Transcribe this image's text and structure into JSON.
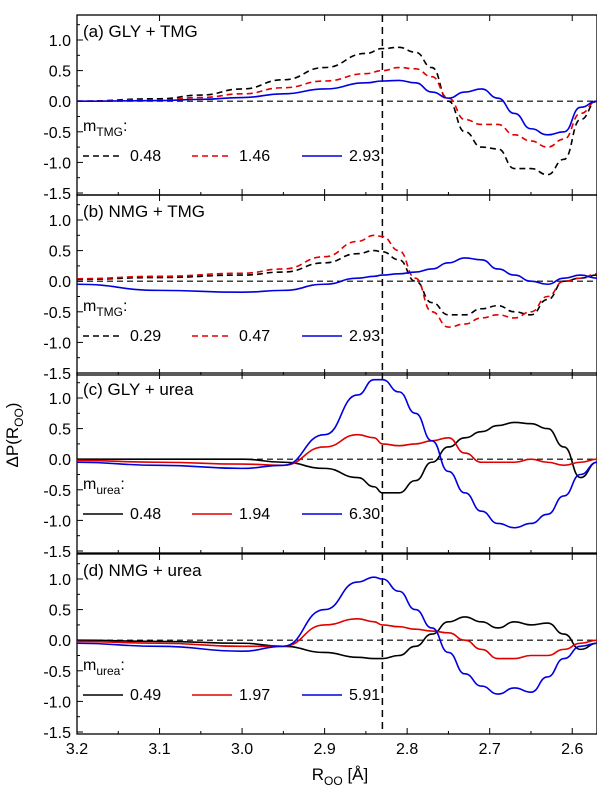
{
  "figure": {
    "ylabel_main": "ΔP(R",
    "ylabel_sub": "OO",
    "ylabel_end": ")",
    "xlabel_main": "R",
    "xlabel_sub": "OO",
    "xlabel_end": " [Å]",
    "xticks": [
      "3.2",
      "3.1",
      "3.0",
      "2.9",
      "2.8",
      "2.7",
      "2.6"
    ],
    "yticks": [
      "-1.5",
      "-1.0",
      "-0.5",
      "0.0",
      "0.5",
      "1.0"
    ]
  },
  "chart_data": [
    {
      "type": "line",
      "title": "(a) GLY + TMG",
      "xlim": [
        3.2,
        2.57
      ],
      "ylim": [
        -1.5,
        1.5
      ],
      "xlabel": "R_OO [Å]",
      "ylabel": "ΔP(R_OO)",
      "vline": 2.83,
      "hline": 0.0,
      "legend_label_main": "m",
      "legend_label_sub": "TMG",
      "legend_label_end": ":",
      "series": [
        {
          "name": "0.48",
          "color": "#000000",
          "dash": "dashed",
          "x": [
            3.2,
            3.1,
            3.05,
            3.0,
            2.95,
            2.9,
            2.85,
            2.83,
            2.81,
            2.79,
            2.77,
            2.75,
            2.73,
            2.71,
            2.69,
            2.67,
            2.65,
            2.63,
            2.61,
            2.59,
            2.57
          ],
          "y": [
            0.0,
            0.04,
            0.1,
            0.2,
            0.35,
            0.55,
            0.78,
            0.86,
            0.88,
            0.8,
            0.55,
            0.0,
            -0.5,
            -0.75,
            -0.78,
            -1.1,
            -1.1,
            -1.2,
            -0.95,
            -0.3,
            0.0
          ]
        },
        {
          "name": "1.46",
          "color": "#e00000",
          "dash": "dashed",
          "x": [
            3.2,
            3.1,
            3.05,
            3.0,
            2.95,
            2.9,
            2.85,
            2.83,
            2.81,
            2.79,
            2.77,
            2.75,
            2.73,
            2.71,
            2.69,
            2.67,
            2.65,
            2.63,
            2.61,
            2.59,
            2.57
          ],
          "y": [
            0.0,
            0.02,
            0.06,
            0.12,
            0.22,
            0.33,
            0.45,
            0.5,
            0.55,
            0.53,
            0.4,
            0.05,
            -0.3,
            -0.38,
            -0.38,
            -0.55,
            -0.65,
            -0.75,
            -0.62,
            -0.2,
            0.0
          ]
        },
        {
          "name": "2.93",
          "color": "#0000e0",
          "dash": "solid",
          "x": [
            3.2,
            3.1,
            3.05,
            3.0,
            2.95,
            2.9,
            2.85,
            2.83,
            2.81,
            2.79,
            2.77,
            2.75,
            2.73,
            2.71,
            2.69,
            2.67,
            2.65,
            2.63,
            2.61,
            2.59,
            2.57
          ],
          "y": [
            0.0,
            0.01,
            0.03,
            0.06,
            0.12,
            0.2,
            0.3,
            0.33,
            0.34,
            0.3,
            0.15,
            0.05,
            0.15,
            0.2,
            0.05,
            -0.2,
            -0.45,
            -0.55,
            -0.5,
            -0.1,
            0.0
          ]
        }
      ]
    },
    {
      "type": "line",
      "title": "(b) NMG + TMG",
      "xlim": [
        3.2,
        2.57
      ],
      "ylim": [
        -1.5,
        1.5
      ],
      "xlabel": "R_OO [Å]",
      "ylabel": "ΔP(R_OO)",
      "vline": 2.83,
      "hline": 0.0,
      "legend_label_main": "m",
      "legend_label_sub": "TMG",
      "legend_label_end": ":",
      "series": [
        {
          "name": "0.29",
          "color": "#000000",
          "dash": "dashed",
          "x": [
            3.2,
            3.1,
            3.0,
            2.95,
            2.9,
            2.86,
            2.84,
            2.83,
            2.81,
            2.79,
            2.77,
            2.75,
            2.73,
            2.71,
            2.69,
            2.67,
            2.65,
            2.63,
            2.61,
            2.59,
            2.57
          ],
          "y": [
            0.03,
            0.06,
            0.1,
            0.15,
            0.3,
            0.45,
            0.5,
            0.48,
            0.35,
            0.0,
            -0.35,
            -0.55,
            -0.55,
            -0.45,
            -0.4,
            -0.5,
            -0.55,
            -0.3,
            0.0,
            0.05,
            0.1
          ]
        },
        {
          "name": "0.47",
          "color": "#e00000",
          "dash": "dashed",
          "x": [
            3.2,
            3.1,
            3.0,
            2.95,
            2.9,
            2.86,
            2.84,
            2.83,
            2.81,
            2.79,
            2.77,
            2.75,
            2.73,
            2.71,
            2.69,
            2.67,
            2.65,
            2.63,
            2.61,
            2.59,
            2.57
          ],
          "y": [
            0.04,
            0.08,
            0.13,
            0.2,
            0.4,
            0.65,
            0.75,
            0.73,
            0.5,
            0.05,
            -0.5,
            -0.75,
            -0.7,
            -0.6,
            -0.55,
            -0.6,
            -0.5,
            -0.25,
            0.0,
            0.05,
            0.12
          ]
        },
        {
          "name": "2.93",
          "color": "#0000e0",
          "dash": "solid",
          "x": [
            3.2,
            3.1,
            3.0,
            2.95,
            2.9,
            2.86,
            2.84,
            2.83,
            2.81,
            2.79,
            2.77,
            2.75,
            2.73,
            2.71,
            2.69,
            2.67,
            2.65,
            2.63,
            2.61,
            2.59,
            2.57
          ],
          "y": [
            -0.05,
            -0.15,
            -0.18,
            -0.15,
            -0.05,
            0.05,
            0.08,
            0.1,
            0.12,
            0.15,
            0.2,
            0.3,
            0.38,
            0.35,
            0.2,
            0.1,
            0.0,
            -0.05,
            0.05,
            0.1,
            0.05
          ]
        }
      ]
    },
    {
      "type": "line",
      "title": "(c) GLY + urea",
      "xlim": [
        3.2,
        2.57
      ],
      "ylim": [
        -1.5,
        1.5
      ],
      "xlabel": "R_OO [Å]",
      "ylabel": "ΔP(R_OO)",
      "vline": 2.83,
      "hline": 0.0,
      "legend_label_main": "m",
      "legend_label_sub": "urea",
      "legend_label_end": ":",
      "series": [
        {
          "name": "0.48",
          "color": "#000000",
          "dash": "solid",
          "x": [
            3.2,
            3.1,
            3.0,
            2.95,
            2.9,
            2.86,
            2.84,
            2.83,
            2.81,
            2.79,
            2.77,
            2.75,
            2.73,
            2.71,
            2.69,
            2.67,
            2.65,
            2.63,
            2.61,
            2.59,
            2.57
          ],
          "y": [
            0.0,
            0.0,
            0.0,
            -0.05,
            -0.15,
            -0.3,
            -0.45,
            -0.55,
            -0.55,
            -0.35,
            -0.05,
            0.2,
            0.35,
            0.45,
            0.55,
            0.6,
            0.58,
            0.5,
            0.2,
            -0.3,
            -0.05
          ]
        },
        {
          "name": "1.94",
          "color": "#e00000",
          "dash": "solid",
          "x": [
            3.2,
            3.1,
            3.0,
            2.95,
            2.9,
            2.86,
            2.84,
            2.83,
            2.81,
            2.79,
            2.77,
            2.75,
            2.73,
            2.71,
            2.69,
            2.67,
            2.65,
            2.63,
            2.61,
            2.59,
            2.57
          ],
          "y": [
            -0.02,
            -0.05,
            -0.08,
            -0.1,
            0.2,
            0.4,
            0.35,
            0.25,
            0.22,
            0.25,
            0.3,
            0.35,
            0.1,
            -0.05,
            -0.05,
            -0.05,
            0.0,
            -0.05,
            -0.1,
            -0.05,
            0.0
          ]
        },
        {
          "name": "6.30",
          "color": "#0000e0",
          "dash": "solid",
          "x": [
            3.2,
            3.1,
            3.0,
            2.95,
            2.9,
            2.86,
            2.84,
            2.83,
            2.81,
            2.79,
            2.77,
            2.75,
            2.73,
            2.71,
            2.69,
            2.67,
            2.65,
            2.63,
            2.61,
            2.59,
            2.57
          ],
          "y": [
            -0.05,
            -0.1,
            -0.15,
            -0.1,
            0.4,
            1.05,
            1.3,
            1.3,
            1.1,
            0.75,
            0.3,
            -0.2,
            -0.55,
            -0.85,
            -1.05,
            -1.12,
            -1.05,
            -0.9,
            -0.6,
            -0.25,
            -0.05
          ]
        }
      ]
    },
    {
      "type": "line",
      "title": "(d) NMG + urea",
      "xlim": [
        3.2,
        2.57
      ],
      "ylim": [
        -1.5,
        1.5
      ],
      "xlabel": "R_OO [Å]",
      "ylabel": "ΔP(R_OO)",
      "vline": 2.83,
      "hline": 0.0,
      "legend_label_main": "m",
      "legend_label_sub": "urea",
      "legend_label_end": ":",
      "series": [
        {
          "name": "0.49",
          "color": "#000000",
          "dash": "solid",
          "x": [
            3.2,
            3.1,
            3.0,
            2.95,
            2.9,
            2.86,
            2.84,
            2.83,
            2.81,
            2.79,
            2.77,
            2.75,
            2.73,
            2.71,
            2.69,
            2.67,
            2.65,
            2.63,
            2.61,
            2.59,
            2.57
          ],
          "y": [
            0.0,
            -0.02,
            -0.05,
            -0.1,
            -0.2,
            -0.28,
            -0.3,
            -0.3,
            -0.25,
            -0.1,
            0.1,
            0.3,
            0.38,
            0.3,
            0.2,
            0.3,
            0.25,
            0.28,
            0.1,
            -0.15,
            -0.05
          ]
        },
        {
          "name": "1.97",
          "color": "#e00000",
          "dash": "solid",
          "x": [
            3.2,
            3.1,
            3.0,
            2.95,
            2.9,
            2.86,
            2.84,
            2.83,
            2.81,
            2.79,
            2.77,
            2.75,
            2.73,
            2.71,
            2.69,
            2.67,
            2.65,
            2.63,
            2.61,
            2.59,
            2.57
          ],
          "y": [
            -0.02,
            -0.05,
            -0.1,
            -0.1,
            0.25,
            0.35,
            0.3,
            0.25,
            0.22,
            0.18,
            0.15,
            0.12,
            0.0,
            -0.15,
            -0.3,
            -0.3,
            -0.25,
            -0.25,
            -0.15,
            -0.05,
            0.0
          ]
        },
        {
          "name": "5.91",
          "color": "#0000e0",
          "dash": "solid",
          "x": [
            3.2,
            3.1,
            3.0,
            2.95,
            2.9,
            2.86,
            2.84,
            2.83,
            2.81,
            2.79,
            2.77,
            2.75,
            2.73,
            2.71,
            2.69,
            2.67,
            2.65,
            2.63,
            2.61,
            2.59,
            2.57
          ],
          "y": [
            -0.05,
            -0.1,
            -0.18,
            -0.1,
            0.5,
            0.95,
            1.03,
            1.0,
            0.8,
            0.5,
            0.2,
            -0.2,
            -0.55,
            -0.75,
            -0.88,
            -0.78,
            -0.85,
            -0.6,
            -0.3,
            -0.1,
            -0.05
          ]
        }
      ]
    }
  ]
}
